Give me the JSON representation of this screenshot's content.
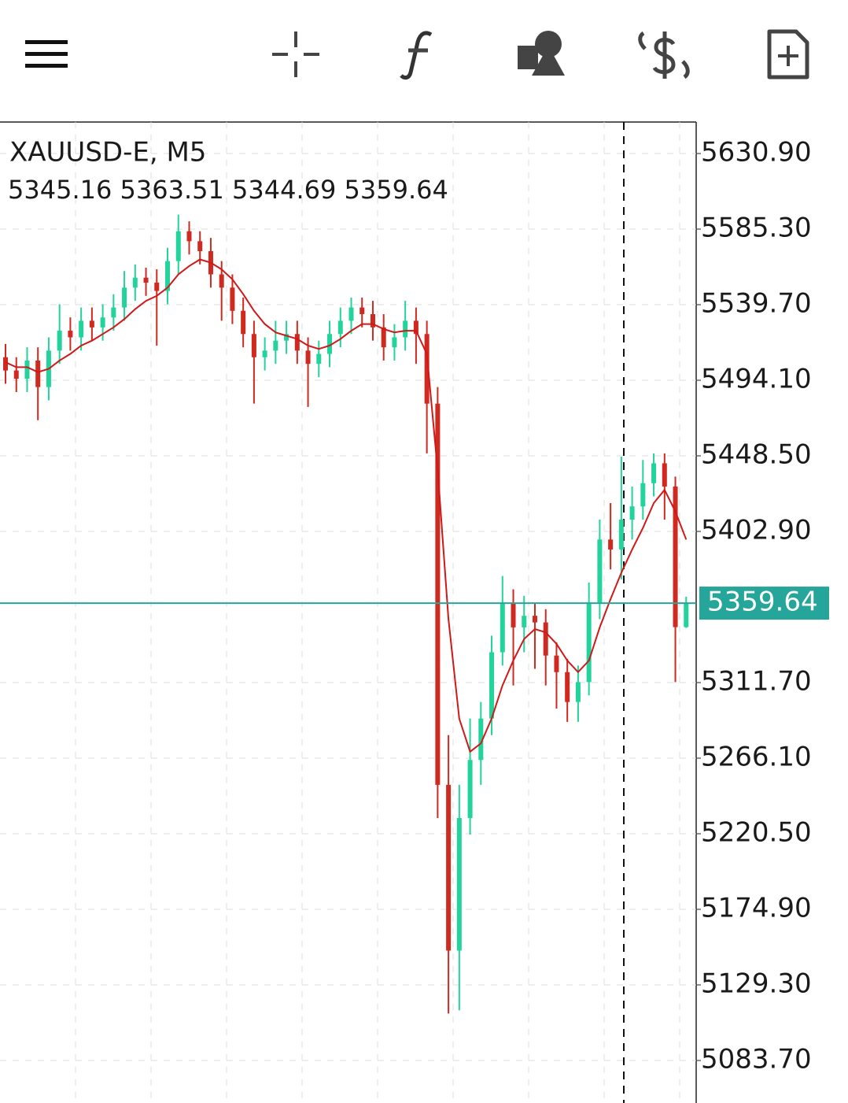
{
  "chart_data": {
    "type": "candlestick",
    "title": "XAUUSD-E, M5",
    "subtitle": "5345.16 5363.51 5344.69 5359.64",
    "up_color": "#22d39b",
    "down_color": "#d0291f",
    "grid": true,
    "ylim": [
      5058.05,
      5649.9
    ],
    "yticks": [
      {
        "value": 5630.9,
        "label": "5630.90"
      },
      {
        "value": 5585.3,
        "label": "5585.30"
      },
      {
        "value": 5539.7,
        "label": "5539.70"
      },
      {
        "value": 5494.1,
        "label": "5494.10"
      },
      {
        "value": 5448.5,
        "label": "5448.50"
      },
      {
        "value": 5402.9,
        "label": "5402.90"
      },
      {
        "value": 5311.7,
        "label": "5311.70"
      },
      {
        "value": 5266.1,
        "label": "5266.10"
      },
      {
        "value": 5220.5,
        "label": "5220.50"
      },
      {
        "value": 5174.9,
        "label": "5174.90"
      },
      {
        "value": 5129.3,
        "label": "5129.30"
      },
      {
        "value": 5083.7,
        "label": "5083.70"
      }
    ],
    "current_price": {
      "value": 5359.64,
      "label": "5359.64",
      "color": "#26a69a"
    },
    "open": [
      5508,
      5500,
      5495,
      5506,
      5490,
      5512,
      5524,
      5520,
      5530,
      5526,
      5532,
      5538,
      5550,
      5556,
      5553,
      5548,
      5566,
      5584,
      5578,
      5572,
      5558,
      5550,
      5536,
      5522,
      5508,
      5512,
      5518,
      5522,
      5512,
      5504,
      5510,
      5522,
      5530,
      5538,
      5534,
      5526,
      5514,
      5520,
      5530,
      5522,
      5480,
      5250,
      5150,
      5230,
      5265,
      5290,
      5330,
      5360,
      5345,
      5352,
      5348,
      5328,
      5318,
      5300,
      5312,
      5360,
      5398,
      5392,
      5410,
      5418,
      5432,
      5444,
      5430,
      5345.16
    ],
    "high": [
      5516,
      5508,
      5514,
      5514,
      5520,
      5540,
      5532,
      5538,
      5538,
      5540,
      5546,
      5560,
      5564,
      5562,
      5561,
      5574,
      5594,
      5590,
      5584,
      5580,
      5566,
      5558,
      5544,
      5530,
      5520,
      5530,
      5530,
      5530,
      5520,
      5518,
      5530,
      5538,
      5544,
      5544,
      5542,
      5534,
      5528,
      5542,
      5538,
      5530,
      5490,
      5280,
      5250,
      5290,
      5300,
      5340,
      5376,
      5368,
      5364,
      5360,
      5356,
      5336,
      5326,
      5322,
      5372,
      5410,
      5420,
      5448,
      5430,
      5446,
      5450,
      5450,
      5436,
      5363.51
    ],
    "low": [
      5492,
      5487,
      5487,
      5470,
      5482,
      5504,
      5512,
      5512,
      5518,
      5518,
      5524,
      5530,
      5542,
      5545,
      5515,
      5540,
      5558,
      5570,
      5564,
      5550,
      5530,
      5528,
      5514,
      5480,
      5500,
      5504,
      5510,
      5504,
      5478,
      5496,
      5502,
      5514,
      5522,
      5526,
      5518,
      5506,
      5506,
      5512,
      5504,
      5450,
      5230,
      5112,
      5114,
      5220,
      5250,
      5280,
      5322,
      5310,
      5330,
      5320,
      5310,
      5296,
      5288,
      5288,
      5304,
      5350,
      5380,
      5374,
      5398,
      5410,
      5424,
      5410,
      5312,
      5344.69
    ],
    "close": [
      5500,
      5495,
      5506,
      5490,
      5512,
      5524,
      5520,
      5530,
      5526,
      5532,
      5538,
      5550,
      5556,
      5553,
      5548,
      5566,
      5584,
      5578,
      5572,
      5558,
      5550,
      5536,
      5522,
      5508,
      5512,
      5518,
      5522,
      5512,
      5504,
      5510,
      5522,
      5530,
      5538,
      5534,
      5526,
      5514,
      5520,
      5530,
      5522,
      5480,
      5250,
      5150,
      5230,
      5265,
      5290,
      5330,
      5360,
      5345,
      5352,
      5348,
      5328,
      5318,
      5300,
      5312,
      5360,
      5398,
      5392,
      5410,
      5418,
      5432,
      5444,
      5430,
      5345.16,
      5359.64
    ],
    "ma_color": "#d01818",
    "ma_values": [
      5505,
      5502,
      5502,
      5499,
      5501,
      5506,
      5510,
      5515,
      5518,
      5522,
      5526,
      5531,
      5537,
      5542,
      5545,
      5550,
      5558,
      5563,
      5567,
      5565,
      5561,
      5555,
      5546,
      5536,
      5528,
      5523,
      5521,
      5519,
      5515,
      5513,
      5515,
      5519,
      5524,
      5528,
      5528,
      5525,
      5523,
      5524,
      5524,
      5510,
      5440,
      5350,
      5290,
      5270,
      5275,
      5290,
      5310,
      5325,
      5338,
      5344,
      5342,
      5335,
      5325,
      5318,
      5325,
      5345,
      5362,
      5378,
      5392,
      5405,
      5420,
      5428,
      5415,
      5398
    ]
  }
}
